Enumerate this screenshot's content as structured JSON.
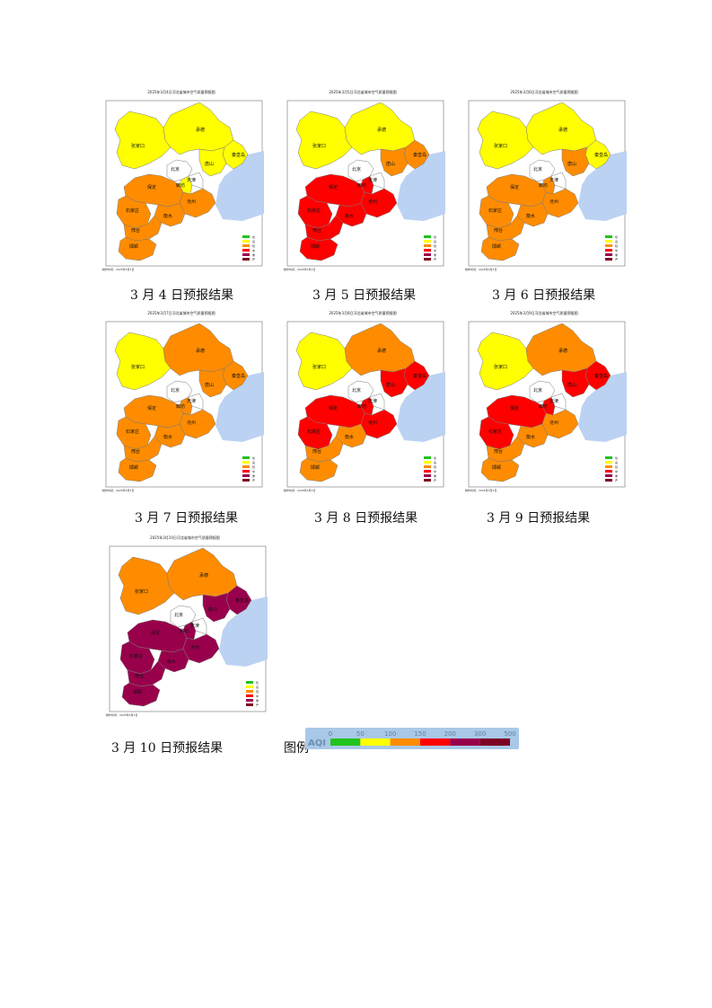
{
  "palette": {
    "good": "#21c21c",
    "moderate": "#ffff00",
    "light": "#ff8c00",
    "medium": "#ff0000",
    "heavy": "#99004c",
    "severe": "#7e0023",
    "sea": "#bcd2f2",
    "land": "#ffffff",
    "border": "#7a7a7a"
  },
  "regions": {
    "zhangjiakou": "张家口",
    "chengde": "承德",
    "qinhuangdao": "秦皇岛",
    "tangshan": "唐山",
    "beijing": "北京",
    "tianjin": "天津",
    "langfang": "廊坊",
    "baoding": "保定",
    "shijiazhuang": "石家庄",
    "cangzhou": "沧州",
    "hengshui": "衡水",
    "xinji": "辛集",
    "xingtai": "邢台",
    "handan": "邯郸",
    "dingzhou": "定州"
  },
  "maps": [
    {
      "id": "mar4",
      "title": "2025年3月4日河北省城市空气质量预报图",
      "caption": "3 月 4 日预报结果",
      "footer": "制作时间：2025年3月3日",
      "levels": {
        "zhangjiakou": "moderate",
        "chengde": "moderate",
        "qinhuangdao": "moderate",
        "tangshan": "moderate",
        "langfang": "moderate",
        "baoding": "light",
        "shijiazhuang": "light",
        "cangzhou": "light",
        "hengshui": "light",
        "xingtai": "light",
        "handan": "light"
      }
    },
    {
      "id": "mar5",
      "title": "2025年3月5日河北省城市空气质量预报图",
      "caption": "3 月 5 日预报结果",
      "footer": "制作时间：2025年3月3日",
      "levels": {
        "zhangjiakou": "moderate",
        "chengde": "moderate",
        "qinhuangdao": "light",
        "tangshan": "light",
        "langfang": "medium",
        "baoding": "medium",
        "shijiazhuang": "medium",
        "cangzhou": "medium",
        "hengshui": "medium",
        "xingtai": "medium",
        "handan": "medium"
      }
    },
    {
      "id": "mar6",
      "title": "2025年3月6日河北省城市空气质量预报图",
      "caption": "3 月 6 日预报结果",
      "footer": "制作时间：2025年3月3日",
      "levels": {
        "zhangjiakou": "moderate",
        "chengde": "moderate",
        "qinhuangdao": "moderate",
        "tangshan": "light",
        "langfang": "light",
        "baoding": "light",
        "shijiazhuang": "light",
        "cangzhou": "light",
        "hengshui": "light",
        "xingtai": "light",
        "handan": "light"
      }
    },
    {
      "id": "mar7",
      "title": "2025年3月7日河北省城市空气质量预报图",
      "caption": "3 月 7 日预报结果",
      "footer": "制作时间：2025年3月3日",
      "levels": {
        "zhangjiakou": "moderate",
        "chengde": "light",
        "qinhuangdao": "light",
        "tangshan": "light",
        "langfang": "light",
        "baoding": "light",
        "shijiazhuang": "light",
        "cangzhou": "light",
        "hengshui": "light",
        "xingtai": "light",
        "handan": "light"
      }
    },
    {
      "id": "mar8",
      "title": "2025年3月8日河北省城市空气质量预报图",
      "caption": "3 月 8 日预报结果",
      "footer": "制作时间：2025年3月3日",
      "levels": {
        "zhangjiakou": "moderate",
        "chengde": "light",
        "qinhuangdao": "medium",
        "tangshan": "medium",
        "langfang": "medium",
        "baoding": "medium",
        "shijiazhuang": "medium",
        "cangzhou": "medium",
        "hengshui": "light",
        "xingtai": "light",
        "handan": "light"
      }
    },
    {
      "id": "mar9",
      "title": "2025年3月9日河北省城市空气质量预报图",
      "caption": "3 月 9 日预报结果",
      "footer": "制作时间：2025年3月3日",
      "levels": {
        "zhangjiakou": "moderate",
        "chengde": "light",
        "qinhuangdao": "medium",
        "tangshan": "medium",
        "langfang": "medium",
        "baoding": "medium",
        "shijiazhuang": "medium",
        "cangzhou": "light",
        "hengshui": "light",
        "xingtai": "light",
        "handan": "light"
      }
    },
    {
      "id": "mar10",
      "title": "2025年3月10日河北省城市空气质量预报图",
      "caption": "3 月 10 日预报结果",
      "footer": "制作时间：2025年3月3日",
      "levels": {
        "zhangjiakou": "light",
        "chengde": "light",
        "qinhuangdao": "heavy",
        "tangshan": "heavy",
        "langfang": "heavy",
        "baoding": "heavy",
        "shijiazhuang": "heavy",
        "cangzhou": "heavy",
        "hengshui": "heavy",
        "xingtai": "heavy",
        "handan": "heavy"
      }
    }
  ],
  "map_legend": {
    "entries": [
      {
        "level": "good",
        "label": "优"
      },
      {
        "level": "moderate",
        "label": "良"
      },
      {
        "level": "light",
        "label": "轻"
      },
      {
        "level": "medium",
        "label": "中"
      },
      {
        "level": "heavy",
        "label": "重"
      },
      {
        "level": "severe",
        "label": "严"
      }
    ]
  },
  "aqi_legend": {
    "label": "图例",
    "title": "AQI",
    "ticks": [
      "0",
      "50",
      "100",
      "150",
      "200",
      "300",
      "500"
    ],
    "segments": [
      "good",
      "moderate",
      "light",
      "medium",
      "heavy",
      "severe"
    ]
  }
}
